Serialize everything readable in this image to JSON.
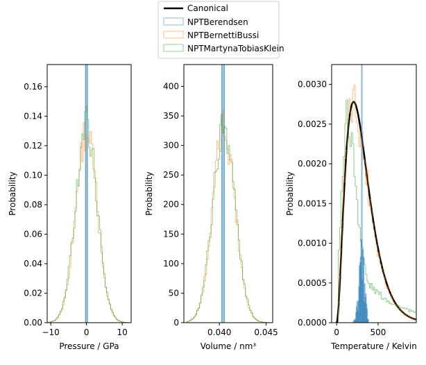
{
  "legend": {
    "location": "top-center",
    "entries": [
      {
        "label": "Canonical",
        "style": "line",
        "color": "#000000"
      },
      {
        "label": "NPTBerendsen",
        "style": "step",
        "color": "#1f77b4"
      },
      {
        "label": "NPTBernettiBussi",
        "style": "step",
        "color": "#ff7f0e"
      },
      {
        "label": "NPTMartynaTobiasKlein",
        "style": "step",
        "color": "#2ca02c"
      }
    ]
  },
  "chart_data": [
    {
      "type": "histogram",
      "xlabel": "Pressure / GPa",
      "ylabel": "Probability",
      "xlim": [
        -11,
        12.5
      ],
      "ylim": [
        0,
        0.175
      ],
      "xticks": [
        -10,
        0,
        10
      ],
      "yticks": [
        0.0,
        0.02,
        0.04,
        0.06,
        0.08,
        0.1,
        0.12,
        0.14,
        0.16
      ],
      "ytick_labels": [
        "0.00",
        "0.02",
        "0.04",
        "0.06",
        "0.08",
        "0.10",
        "0.12",
        "0.14",
        "0.16"
      ],
      "xtick_labels": [
        "−10",
        "0",
        "10"
      ],
      "series": [
        {
          "name": "NPTBerendsen",
          "color": "#1f77b4",
          "style": "spike",
          "center": 0.0,
          "halfwidth": 0.3,
          "peak": 0.175
        },
        {
          "name": "NPTBernettiBussi",
          "color": "#ff7f0e",
          "style": "step",
          "center": 0.0,
          "sigma": 3.0,
          "peak": 0.13,
          "xmin": -10.5,
          "xmax": 12.5
        },
        {
          "name": "NPTMartynaTobiasKlein",
          "color": "#2ca02c",
          "style": "step",
          "center": 0.0,
          "sigma": 3.0,
          "peak": 0.135,
          "xmin": -10.5,
          "xmax": 12.5
        }
      ]
    },
    {
      "type": "histogram",
      "xlabel": "Volume / nm³",
      "ylabel": "Probability",
      "xlim": [
        0.0362,
        0.0457
      ],
      "ylim": [
        0,
        437
      ],
      "xticks": [
        0.04,
        0.045
      ],
      "xtick_labels": [
        "0.040",
        "0.045"
      ],
      "yticks": [
        0,
        50,
        100,
        150,
        200,
        250,
        300,
        350,
        400
      ],
      "ytick_labels": [
        "0",
        "50",
        "100",
        "150",
        "200",
        "250",
        "300",
        "350",
        "400"
      ],
      "series": [
        {
          "name": "NPTBerendsen",
          "color": "#1f77b4",
          "style": "spike",
          "center": 0.0404,
          "halfwidth": 0.00015,
          "peak": 437
        },
        {
          "name": "NPTBernettiBussi",
          "color": "#ff7f0e",
          "style": "step",
          "center": 0.0405,
          "sigma": 0.0012,
          "peak": 330,
          "xmin": 0.0365,
          "xmax": 0.0457
        },
        {
          "name": "NPTMartynaTobiasKlein",
          "color": "#2ca02c",
          "style": "step",
          "center": 0.0405,
          "sigma": 0.0012,
          "peak": 335,
          "xmin": 0.0365,
          "xmax": 0.0457
        }
      ]
    },
    {
      "type": "histogram",
      "xlabel": "Temperature / Kelvin",
      "ylabel": "Probability",
      "xlim": [
        -60,
        960
      ],
      "ylim": [
        0,
        0.00325
      ],
      "xticks": [
        0,
        500
      ],
      "xtick_labels": [
        "0",
        "500"
      ],
      "yticks": [
        0,
        0.0005,
        0.001,
        0.0015,
        0.002,
        0.0025,
        0.003
      ],
      "ytick_labels": [
        "0.0000",
        "0.0005",
        "0.0010",
        "0.0015",
        "0.0020",
        "0.0025",
        "0.0030"
      ],
      "series": [
        {
          "name": "Canonical",
          "color": "#000000",
          "style": "curve",
          "peak_x": 205,
          "peak": 0.00278,
          "xmin": 0,
          "xmax": 960
        },
        {
          "name": "NPTBernettiBussi",
          "color": "#ff7f0e",
          "style": "step",
          "peak_x": 205,
          "peak": 0.00275,
          "xmin": 20,
          "xmax": 960
        },
        {
          "name": "NPTMartynaTobiasKlein",
          "color": "#2ca02c",
          "style": "step",
          "peak_x": 130,
          "peak": 0.0026,
          "xmin": 20,
          "xmax": 960
        },
        {
          "name": "NPTBerendsen",
          "color": "#1f77b4",
          "style": "cluster",
          "peak_x": 300,
          "peak": 0.00325,
          "xmin": 150,
          "xmax": 380
        }
      ]
    }
  ]
}
